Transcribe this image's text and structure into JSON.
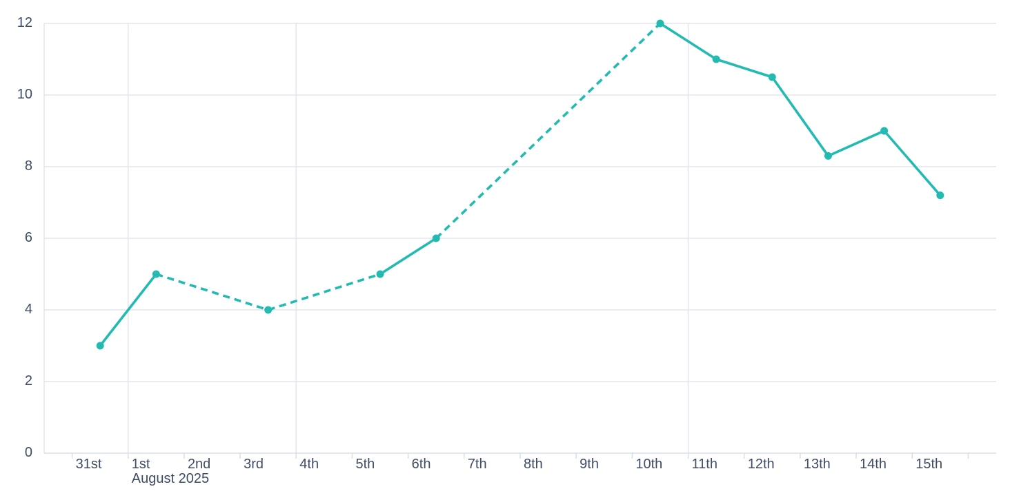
{
  "chart_data": {
    "type": "line",
    "title": "",
    "x_axis": {
      "tick_labels": [
        "31st",
        "1st",
        "2nd",
        "3rd",
        "4th",
        "5th",
        "6th",
        "7th",
        "8th",
        "9th",
        "10th",
        "11th",
        "12th",
        "13th",
        "14th",
        "15th"
      ],
      "month_label": "August 2025",
      "month_label_under": "1st",
      "vertical_gridlines_at": [
        "1st",
        "4th",
        "11th"
      ]
    },
    "y_axis": {
      "tick_labels": [
        "0",
        "2",
        "4",
        "6",
        "8",
        "10",
        "12"
      ],
      "tick_values": [
        0,
        2,
        4,
        6,
        8,
        10,
        12
      ],
      "range": [
        0,
        12
      ],
      "grid": true
    },
    "series": [
      {
        "name": "daily-values",
        "color": "#23bab2",
        "points": [
          {
            "label": "31st",
            "day_offset": 0,
            "value": 3
          },
          {
            "label": "1st",
            "day_offset": 1,
            "value": 5
          },
          {
            "label": "3rd",
            "day_offset": 3,
            "value": 4
          },
          {
            "label": "5th",
            "day_offset": 5,
            "value": 5
          },
          {
            "label": "6th",
            "day_offset": 6,
            "value": 6
          },
          {
            "label": "10th",
            "day_offset": 10,
            "value": 12
          },
          {
            "label": "11th",
            "day_offset": 11,
            "value": 11
          },
          {
            "label": "12th",
            "day_offset": 12,
            "value": 10.5
          },
          {
            "label": "13th",
            "day_offset": 13,
            "value": 8.3
          },
          {
            "label": "14th",
            "day_offset": 14,
            "value": 9
          },
          {
            "label": "15th",
            "day_offset": 15,
            "value": 7.2
          }
        ],
        "segments": [
          {
            "from": "31st",
            "to": "1st",
            "style": "solid"
          },
          {
            "from": "1st",
            "to": "3rd",
            "style": "dashed"
          },
          {
            "from": "3rd",
            "to": "5th",
            "style": "dashed"
          },
          {
            "from": "5th",
            "to": "6th",
            "style": "solid"
          },
          {
            "from": "6th",
            "to": "10th",
            "style": "dashed"
          },
          {
            "from": "10th",
            "to": "11th",
            "style": "solid"
          },
          {
            "from": "11th",
            "to": "12th",
            "style": "solid"
          },
          {
            "from": "12th",
            "to": "13th",
            "style": "solid"
          },
          {
            "from": "13th",
            "to": "14th",
            "style": "solid"
          },
          {
            "from": "14th",
            "to": "15th",
            "style": "solid"
          }
        ]
      }
    ],
    "legend": {
      "visible": false
    },
    "colors": {
      "line": "#23bab2",
      "marker": "#23bab2",
      "gridline": "#e2e6f0",
      "axis_line": "#d9dee8",
      "tick_mark": "#d9dee8",
      "label_text": "#3e4c66",
      "background": "#ffffff"
    }
  }
}
